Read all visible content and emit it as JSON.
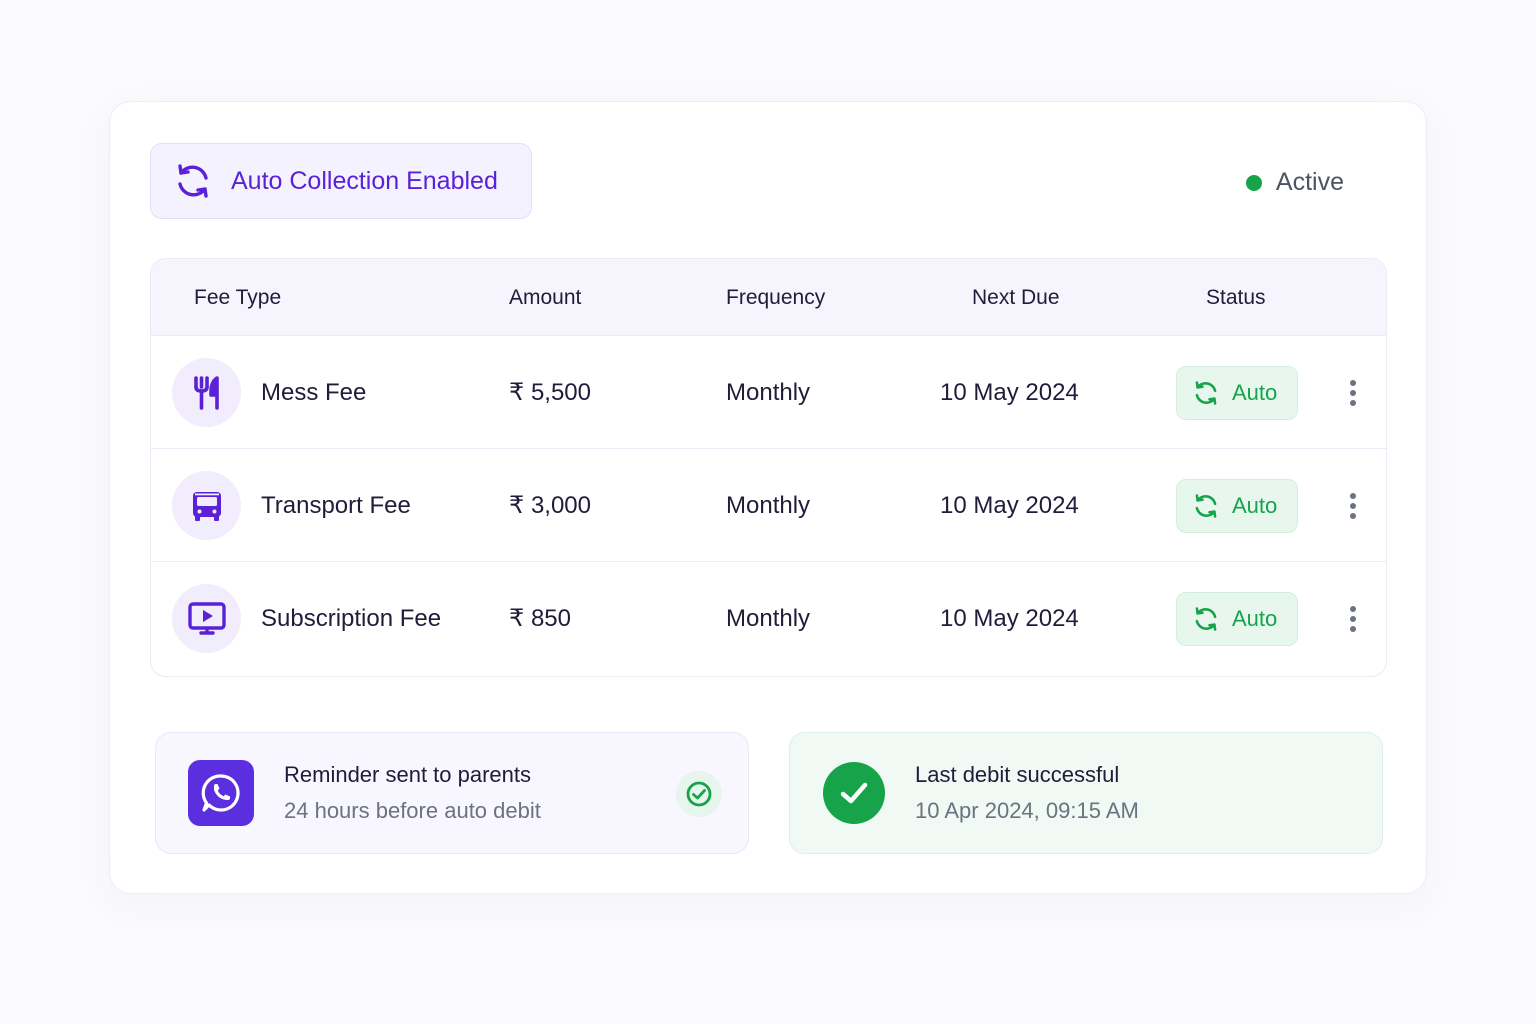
{
  "header": {
    "auto_collection_label": "Auto Collection Enabled",
    "auto_collection_icon": "refresh-icon",
    "status_text": "Active",
    "status_color": "#16a34a"
  },
  "table": {
    "columns": [
      "Fee Type",
      "Amount",
      "Frequency",
      "Next Due",
      "Status"
    ],
    "rows": [
      {
        "icon": "utensils-icon",
        "fee_type": "Mess Fee",
        "amount": "₹ 5,500",
        "frequency": "Monthly",
        "next_due": "10 May 2024",
        "status": "Auto"
      },
      {
        "icon": "bus-icon",
        "fee_type": "Transport Fee",
        "amount": "₹ 3,000",
        "frequency": "Monthly",
        "next_due": "10 May 2024",
        "status": "Auto"
      },
      {
        "icon": "tv-play-icon",
        "fee_type": "Subscription Fee",
        "amount": "₹ 850",
        "frequency": "Monthly",
        "next_due": "10 May 2024",
        "status": "Auto"
      }
    ]
  },
  "reminder": {
    "icon": "whatsapp-icon",
    "title": "Reminder sent to parents",
    "subtitle": "24 hours before auto debit"
  },
  "last_debit": {
    "icon": "check-circle-icon",
    "title": "Last debit successful",
    "subtitle": "10 Apr 2024, 09:15 AM"
  },
  "colors": {
    "accent": "#5b21d6",
    "success": "#16a34a",
    "header_bg": "#f6f4fd"
  }
}
